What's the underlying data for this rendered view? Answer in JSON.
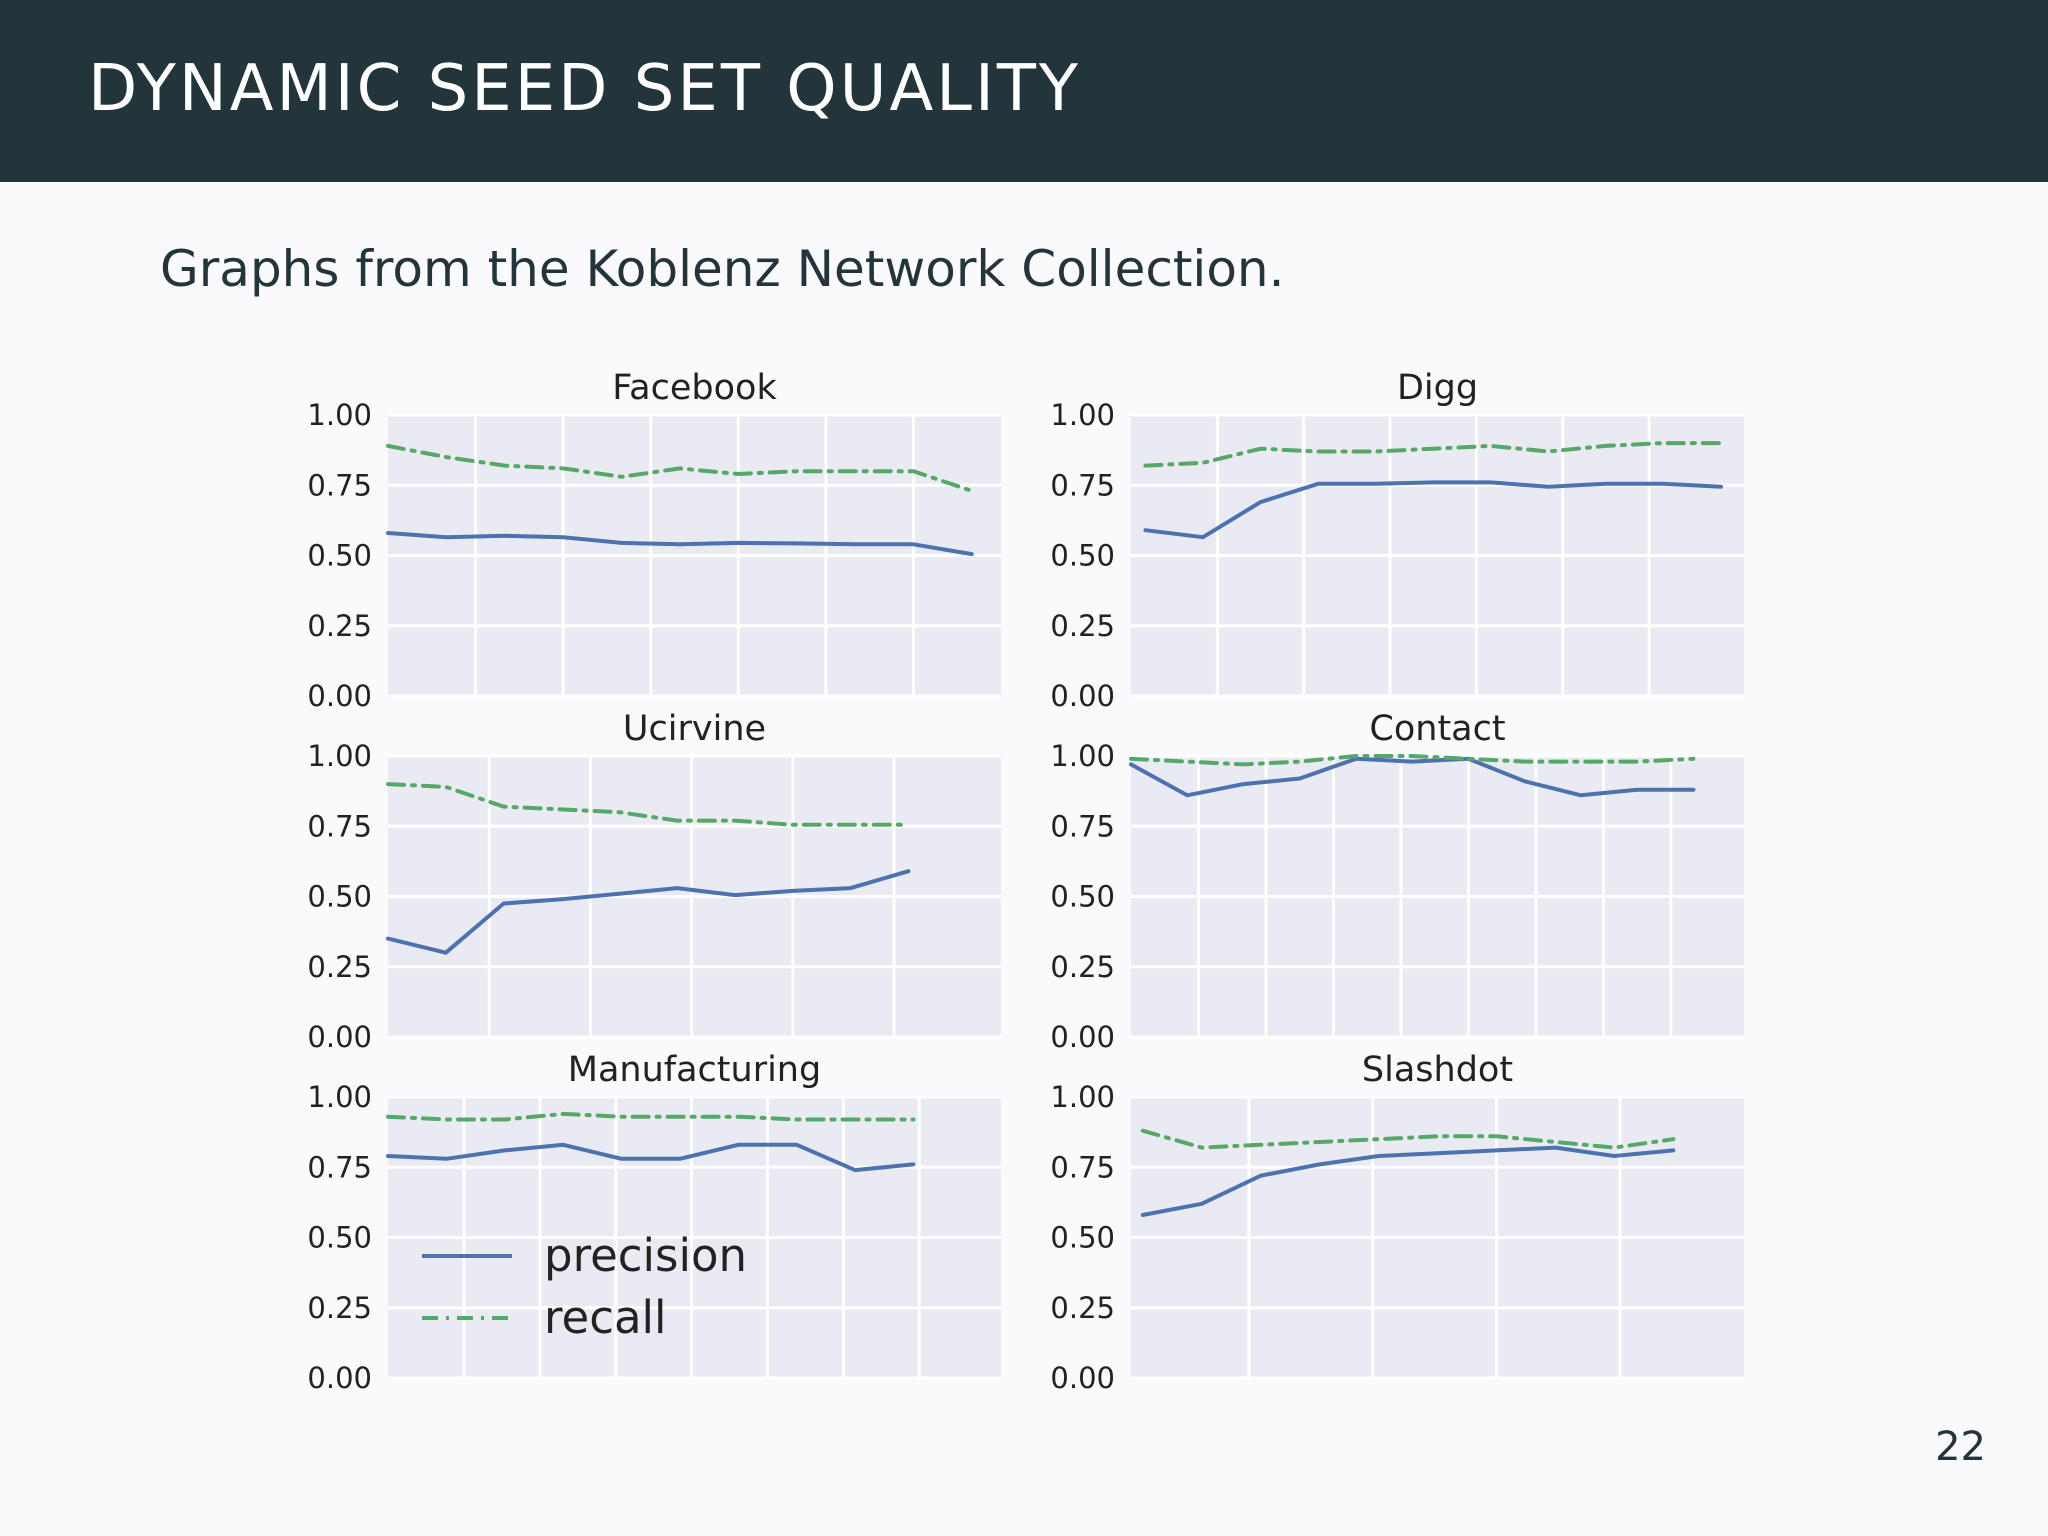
{
  "slide": {
    "title": "DYNAMIC SEED SET QUALITY",
    "subtitle": "Graphs from the Koblenz Network Collection.",
    "page_number": "22"
  },
  "colors": {
    "header_bg": "#23343b",
    "precision": "#4c72b0",
    "recall": "#55a868",
    "plot_bg": "#eaeaf2"
  },
  "legend": {
    "location": "lower-left of Manufacturing panel",
    "entries": [
      {
        "label": "precision",
        "style": "solid"
      },
      {
        "label": "recall",
        "style": "dotted"
      }
    ]
  },
  "chart_data": [
    {
      "type": "line",
      "title": "Facebook",
      "ylim": [
        0,
        1
      ],
      "yticks": [
        "0.00",
        "0.25",
        "0.50",
        "0.75",
        "1.00"
      ],
      "x": [
        0,
        1,
        2,
        3,
        4,
        5,
        6,
        7,
        8,
        9,
        10
      ],
      "xlim": [
        0,
        10.5
      ],
      "xgrid": [
        1.5,
        3,
        4.5,
        6,
        7.5,
        9
      ],
      "grid": true,
      "series": [
        {
          "name": "precision",
          "values": [
            0.58,
            0.565,
            0.57,
            0.565,
            0.545,
            0.54,
            0.545,
            0.543,
            0.54,
            0.54,
            0.505
          ]
        },
        {
          "name": "recall",
          "values": [
            0.89,
            0.85,
            0.82,
            0.81,
            0.78,
            0.81,
            0.79,
            0.8,
            0.8,
            0.8,
            0.73
          ]
        }
      ]
    },
    {
      "type": "line",
      "title": "Digg",
      "ylim": [
        0,
        1
      ],
      "yticks": [
        "0.00",
        "0.25",
        "0.50",
        "0.75",
        "1.00"
      ],
      "x": [
        0,
        1,
        2,
        3,
        4,
        5,
        6,
        7,
        8,
        9,
        10
      ],
      "xlim": [
        -0.25,
        10.4
      ],
      "xgrid": [
        1.25,
        2.75,
        4.25,
        5.75,
        7.25,
        8.75
      ],
      "grid": true,
      "series": [
        {
          "name": "precision",
          "values": [
            0.59,
            0.565,
            0.69,
            0.755,
            0.755,
            0.76,
            0.76,
            0.745,
            0.755,
            0.755,
            0.745
          ]
        },
        {
          "name": "recall",
          "values": [
            0.82,
            0.83,
            0.88,
            0.87,
            0.87,
            0.88,
            0.89,
            0.87,
            0.89,
            0.9,
            0.9
          ]
        }
      ]
    },
    {
      "type": "line",
      "title": "Ucirvine",
      "ylim": [
        0,
        1
      ],
      "yticks": [
        "0.00",
        "0.25",
        "0.50",
        "0.75",
        "1.00"
      ],
      "x": [
        0,
        1,
        2,
        3,
        4,
        5,
        6,
        7,
        8,
        9
      ],
      "xlim": [
        0,
        10.6
      ],
      "xgrid": [
        1.75,
        3.5,
        5.25,
        7.0,
        8.75
      ],
      "grid": true,
      "series": [
        {
          "name": "precision",
          "values": [
            0.35,
            0.3,
            0.475,
            0.49,
            0.51,
            0.53,
            0.505,
            0.52,
            0.53,
            0.59
          ]
        },
        {
          "name": "recall",
          "values": [
            0.9,
            0.89,
            0.82,
            0.81,
            0.8,
            0.77,
            0.77,
            0.755,
            0.755,
            0.755
          ]
        }
      ]
    },
    {
      "type": "line",
      "title": "Contact",
      "ylim": [
        0,
        1
      ],
      "yticks": [
        "0.00",
        "0.25",
        "0.50",
        "0.75",
        "1.00"
      ],
      "x": [
        0,
        1,
        2,
        3,
        4,
        5,
        6,
        7,
        8,
        9,
        10
      ],
      "xlim": [
        0,
        10.9
      ],
      "xgrid": [
        1.2,
        2.4,
        3.6,
        4.8,
        6.0,
        7.2,
        8.4,
        9.6
      ],
      "grid": true,
      "series": [
        {
          "name": "precision",
          "values": [
            0.97,
            0.86,
            0.9,
            0.92,
            0.99,
            0.98,
            0.99,
            0.91,
            0.86,
            0.88,
            0.88
          ]
        },
        {
          "name": "recall",
          "values": [
            0.99,
            0.98,
            0.97,
            0.98,
            1.0,
            1.0,
            0.99,
            0.98,
            0.98,
            0.98,
            0.99
          ]
        }
      ]
    },
    {
      "type": "line",
      "title": "Manufacturing",
      "ylim": [
        0,
        1
      ],
      "yticks": [
        "0.00",
        "0.25",
        "0.50",
        "0.75",
        "1.00"
      ],
      "x": [
        0,
        1,
        2,
        3,
        4,
        5,
        6,
        7,
        8,
        9
      ],
      "xlim": [
        0,
        10.5
      ],
      "xgrid": [
        1.3,
        2.6,
        3.9,
        5.2,
        6.5,
        7.8,
        9.1
      ],
      "grid": true,
      "series": [
        {
          "name": "precision",
          "values": [
            0.79,
            0.78,
            0.81,
            0.83,
            0.78,
            0.78,
            0.83,
            0.83,
            0.74,
            0.76
          ]
        },
        {
          "name": "recall",
          "values": [
            0.93,
            0.92,
            0.92,
            0.94,
            0.93,
            0.93,
            0.93,
            0.92,
            0.92,
            0.92
          ]
        }
      ]
    },
    {
      "type": "line",
      "title": "Slashdot",
      "ylim": [
        0,
        1
      ],
      "yticks": [
        "0.00",
        "0.25",
        "0.50",
        "0.75",
        "1.00"
      ],
      "x": [
        0,
        1,
        2,
        3,
        4,
        5,
        6,
        7,
        8,
        9
      ],
      "xlim": [
        -0.2,
        10.2
      ],
      "xgrid": [
        1.8,
        3.9,
        6.0,
        8.1
      ],
      "grid": true,
      "series": [
        {
          "name": "precision",
          "values": [
            0.58,
            0.62,
            0.72,
            0.76,
            0.79,
            0.8,
            0.81,
            0.82,
            0.79,
            0.81
          ]
        },
        {
          "name": "recall",
          "values": [
            0.88,
            0.82,
            0.83,
            0.84,
            0.85,
            0.86,
            0.86,
            0.84,
            0.82,
            0.85
          ]
        }
      ]
    }
  ]
}
